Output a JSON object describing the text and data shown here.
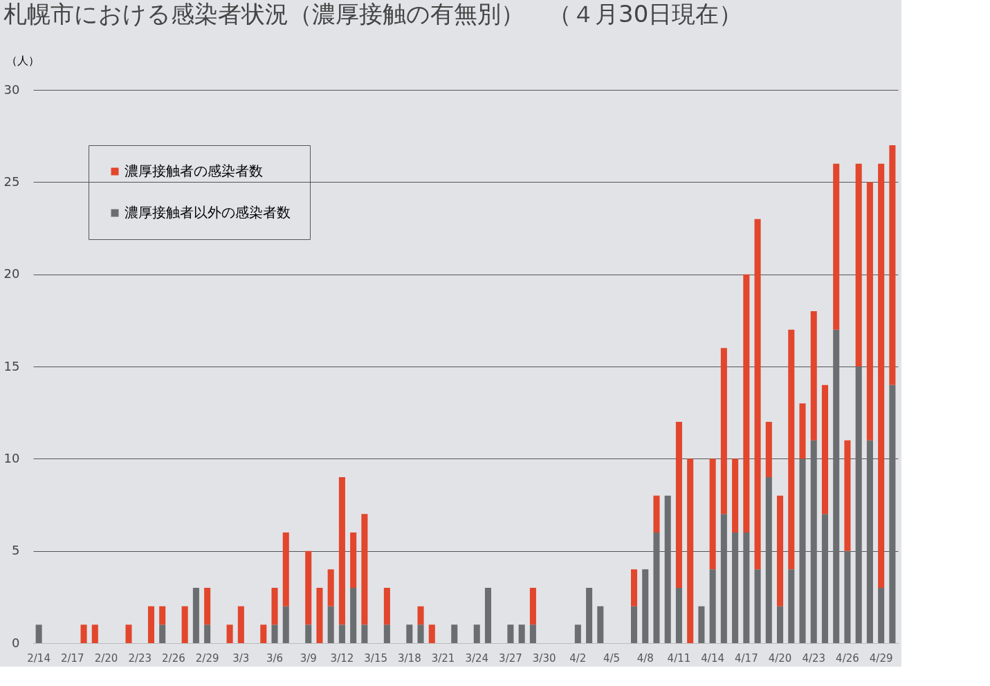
{
  "chart_data": {
    "type": "bar",
    "title": "札幌市における感染者状況（濃厚接触の有無別）　（４月30日現在）",
    "ylabel": "（人）",
    "categories": [
      "2/14",
      null,
      null,
      "2/17",
      null,
      null,
      "2/20",
      null,
      null,
      "2/23",
      null,
      null,
      "2/26",
      null,
      null,
      "2/29",
      null,
      null,
      "3/3",
      null,
      null,
      "3/6",
      null,
      null,
      "3/9",
      null,
      null,
      "3/12",
      null,
      null,
      "3/15",
      null,
      null,
      "3/18",
      null,
      null,
      "3/21",
      null,
      null,
      "3/24",
      null,
      null,
      "3/27",
      null,
      null,
      "3/30",
      null,
      null,
      "4/2",
      null,
      null,
      "4/5",
      null,
      null,
      "4/8",
      null,
      null,
      "4/11",
      null,
      null,
      "4/14",
      null,
      null,
      "4/17",
      null,
      null,
      "4/20",
      null,
      null,
      "4/23",
      null,
      null,
      "4/26",
      null,
      null,
      "4/29",
      null
    ],
    "stacked": true,
    "series": [
      {
        "name": "濃厚接触者以外の感染者数",
        "color": "#6b6e70",
        "values": [
          1,
          0,
          0,
          0,
          0,
          0,
          0,
          0,
          0,
          0,
          0,
          1,
          0,
          0,
          3,
          1,
          0,
          0,
          0,
          0,
          0,
          1,
          2,
          0,
          1,
          0,
          2,
          1,
          3,
          1,
          0,
          1,
          0,
          1,
          1,
          0,
          0,
          1,
          0,
          1,
          3,
          0,
          1,
          1,
          1,
          0,
          0,
          0,
          1,
          3,
          2,
          0,
          0,
          2,
          4,
          6,
          8,
          3,
          0,
          2,
          4,
          7,
          6,
          6,
          4,
          9,
          2,
          4,
          10,
          11,
          7,
          17,
          5,
          15,
          11,
          3,
          14
        ]
      },
      {
        "name": "濃厚接触者の感染者数",
        "color": "#e2462c",
        "values": [
          0,
          0,
          0,
          0,
          1,
          1,
          0,
          0,
          1,
          0,
          2,
          1,
          0,
          2,
          0,
          2,
          0,
          1,
          2,
          0,
          1,
          2,
          4,
          0,
          4,
          3,
          2,
          8,
          3,
          6,
          0,
          2,
          0,
          0,
          1,
          1,
          0,
          0,
          0,
          0,
          0,
          0,
          0,
          0,
          2,
          0,
          0,
          0,
          0,
          0,
          0,
          0,
          0,
          2,
          0,
          2,
          0,
          9,
          10,
          0,
          6,
          9,
          4,
          14,
          19,
          3,
          6,
          13,
          3,
          7,
          7,
          9,
          6,
          11,
          14,
          23,
          13
        ]
      }
    ],
    "ylim": [
      0,
      30
    ],
    "yticks": [
      0,
      5,
      10,
      15,
      20,
      25,
      30
    ],
    "grid": "y",
    "legend": "top left"
  }
}
